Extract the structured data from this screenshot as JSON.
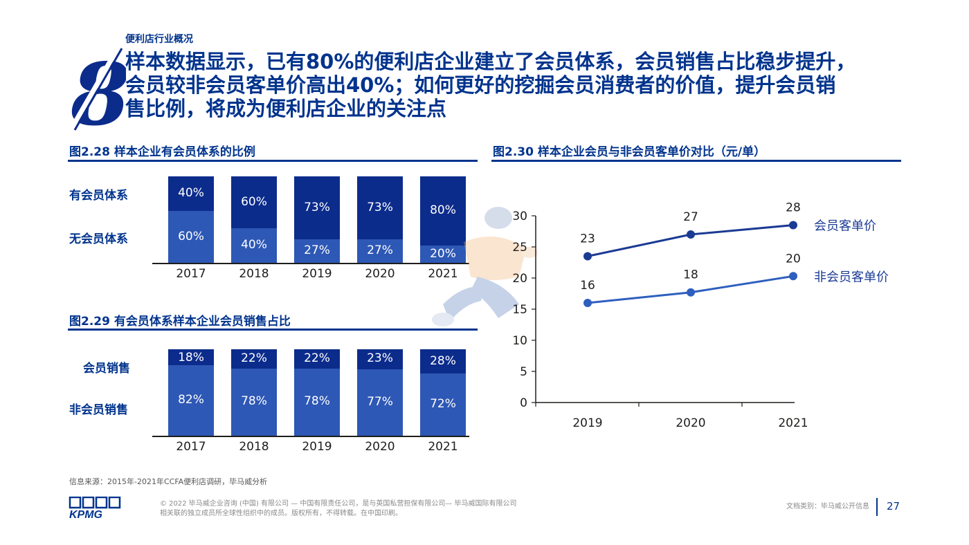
{
  "header": {
    "section": "便利店行业概况",
    "headline": [
      "样本数据显示，已有80%的便利店企业建立了会员体系，会员销售占比稳步提升，",
      "会员较非会员客单价高出40%；如何更好的挖掘会员消费者的价值，提升会员销",
      "售比例，将成为便利店企业的关注点"
    ],
    "section_number": "8"
  },
  "fig228": {
    "title": "图2.28 样本企业有会员体系的比例",
    "row_labels": [
      "有会员体系",
      "无会员体系"
    ]
  },
  "fig229": {
    "title": "图2.29 有会员体系样本企业会员销售占比",
    "row_labels": [
      "会员销售",
      "非会员销售"
    ]
  },
  "fig230": {
    "title": "图2.30 样本企业会员与非会员客单价对比（元/单）"
  },
  "chart_data": [
    {
      "type": "bar",
      "stacked": true,
      "categories": [
        "2017",
        "2018",
        "2019",
        "2020",
        "2021"
      ],
      "series": [
        {
          "name": "有会员体系",
          "values": [
            40,
            60,
            73,
            73,
            80
          ],
          "labels": [
            "40%",
            "60%",
            "73%",
            "73%",
            "80%"
          ],
          "color": "#0c2c8c"
        },
        {
          "name": "无会员体系",
          "values": [
            60,
            40,
            27,
            27,
            20
          ],
          "labels": [
            "60%",
            "40%",
            "27%",
            "27%",
            "20%"
          ],
          "color": "#2e58b5"
        }
      ],
      "ylim": [
        0,
        100
      ]
    },
    {
      "type": "bar",
      "stacked": true,
      "categories": [
        "2017",
        "2018",
        "2019",
        "2020",
        "2021"
      ],
      "series": [
        {
          "name": "会员销售",
          "values": [
            18,
            22,
            22,
            23,
            28
          ],
          "labels": [
            "18%",
            "22%",
            "22%",
            "23%",
            "28%"
          ],
          "color": "#0c2c8c"
        },
        {
          "name": "非会员销售",
          "values": [
            82,
            78,
            78,
            77,
            72
          ],
          "labels": [
            "82%",
            "78%",
            "78%",
            "77%",
            "72%"
          ],
          "color": "#2e58b5"
        }
      ],
      "ylim": [
        0,
        100
      ]
    },
    {
      "type": "line",
      "x": [
        "2019",
        "2020",
        "2021"
      ],
      "series": [
        {
          "name": "会员客单价",
          "values": [
            23.5,
            27,
            28.5
          ],
          "labels": [
            "23",
            "27",
            "28"
          ],
          "color": "#1b3a94"
        },
        {
          "name": "非会员客单价",
          "values": [
            16,
            17.7,
            20.3
          ],
          "labels": [
            "16",
            "18",
            "20"
          ],
          "color": "#2e5fbf"
        }
      ],
      "yticks": [
        "0",
        "5",
        "10",
        "15",
        "20",
        "25",
        "30"
      ],
      "ylim": [
        0,
        30
      ],
      "grid": false,
      "legend": "right"
    }
  ],
  "footer": {
    "source": "信息来源：2015年-2021年CCFA便利店调研，毕马威分析",
    "logo": "KPMG",
    "copyright": [
      "© 2022 毕马威企业咨询 (中国) 有限公司 — 中国有限责任公司，是与英国私营担保有限公司— 毕马威国际有限公司",
      "相关联的独立成员所全球性组织中的成员。版权所有，不得转载。在中国印刷。"
    ],
    "doc_class": "文档类别：毕马威公开信息",
    "page_number": "27"
  }
}
